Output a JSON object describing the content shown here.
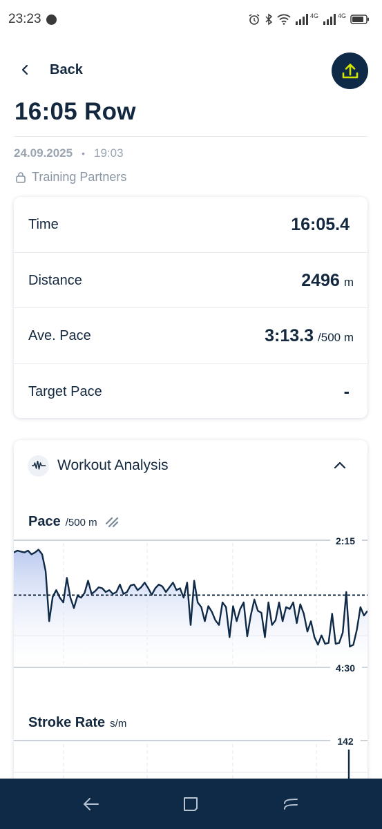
{
  "status_bar": {
    "time": "23:23",
    "network_label_1": "4G",
    "network_label_2": "4G"
  },
  "header": {
    "back_label": "Back",
    "share_icon": "upload-icon"
  },
  "workout": {
    "title": "16:05 Row",
    "date": "24.09.2025",
    "separator": "•",
    "time": "19:03",
    "privacy": "Training Partners"
  },
  "stats": [
    {
      "label": "Time",
      "value": "16:05.4",
      "unit": ""
    },
    {
      "label": "Distance",
      "value": "2496",
      "unit": "m"
    },
    {
      "label": "Ave. Pace",
      "value": "3:13.3",
      "unit": "/500 m"
    },
    {
      "label": "Target Pace",
      "value": "-",
      "unit": ""
    }
  ],
  "analysis": {
    "title": "Workout Analysis",
    "pace_chart": {
      "title": "Pace",
      "unit": "/500 m",
      "y_top_label": "2:15",
      "y_bottom_label": "4:30"
    },
    "stroke_chart": {
      "title": "Stroke Rate",
      "unit": "s/m",
      "y_top_label": "142"
    }
  },
  "colors": {
    "navy": "#0f2a47",
    "accent": "#d4e600",
    "text": "#13283f",
    "muted": "#9aa4b1"
  },
  "chart_data": [
    {
      "type": "line",
      "title": "Pace",
      "ylabel": "/500 m",
      "y_axis": [
        "2:15",
        "4:30"
      ],
      "ylim_seconds": [
        135,
        270
      ],
      "average_line_seconds": 193.3,
      "x_range": [
        0,
        100
      ],
      "x": [
        0,
        1,
        2,
        3,
        4,
        5,
        6,
        7,
        8,
        9,
        10,
        11,
        12,
        13,
        14,
        15,
        16,
        17,
        18,
        19,
        20,
        21,
        22,
        23,
        24,
        25,
        26,
        27,
        28,
        29,
        30,
        31,
        32,
        33,
        34,
        35,
        36,
        37,
        38,
        39,
        40,
        41,
        42,
        43,
        44,
        45,
        46,
        47,
        48,
        49,
        50,
        51,
        52,
        53,
        54,
        55,
        56,
        57,
        58,
        59,
        60,
        61,
        62,
        63,
        64,
        65,
        66,
        67,
        68,
        69,
        70,
        71,
        72,
        73,
        74,
        75,
        76,
        77,
        78,
        79,
        80,
        81,
        82,
        83,
        84,
        85,
        86,
        87,
        88,
        89,
        90,
        91,
        92,
        93,
        94,
        95,
        96,
        97,
        98,
        99,
        100
      ],
      "values_seconds": [
        148,
        146,
        147,
        148,
        146,
        150,
        148,
        145,
        150,
        168,
        221,
        195,
        188,
        196,
        201,
        175,
        196,
        207,
        194,
        196,
        191,
        178,
        192,
        189,
        185,
        186,
        190,
        188,
        192,
        190,
        182,
        192,
        190,
        183,
        182,
        188,
        185,
        180,
        186,
        193,
        186,
        182,
        184,
        190,
        185,
        180,
        188,
        186,
        196,
        180,
        225,
        178,
        201,
        206,
        221,
        205,
        211,
        220,
        225,
        201,
        206,
        238,
        205,
        221,
        208,
        201,
        237,
        215,
        198,
        210,
        212,
        238,
        201,
        225,
        220,
        201,
        221,
        206,
        208,
        201,
        223,
        203,
        213,
        232,
        221,
        238,
        246,
        236,
        245,
        244,
        213,
        245,
        244,
        233,
        190,
        248,
        246,
        230,
        206,
        215,
        210
      ]
    },
    {
      "type": "line",
      "title": "Stroke Rate",
      "ylabel": "s/m",
      "y_axis": [
        "142"
      ],
      "ylim": [
        0,
        142
      ],
      "x_range": [
        0,
        100
      ],
      "note_values": [
        [
          95,
          142
        ]
      ]
    }
  ]
}
